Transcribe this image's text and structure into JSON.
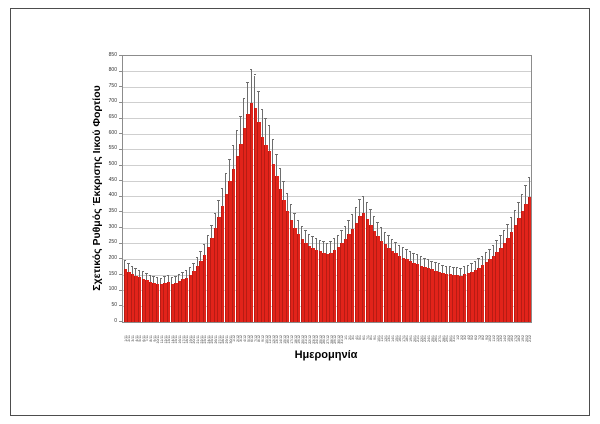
{
  "chart_data": {
    "type": "bar",
    "title": "",
    "xlabel": "Ημερομηνία",
    "ylabel": "Σχετικός Ρυθμός Έκκρισης Ιικού Φορτίου",
    "ylim": [
      0,
      850
    ],
    "ytick_step": 50,
    "grid": true,
    "legend_position": "none",
    "bar_color": "#e2231a",
    "error_color": "#6e6e6e",
    "error_bar_fraction": 0.15,
    "categories": [
      "1/11",
      "2/11",
      "3/11",
      "4/11",
      "5/11",
      "6/11",
      "7/11",
      "8/11",
      "9/11",
      "10/11",
      "11/11",
      "12/11",
      "13/11",
      "14/11",
      "15/11",
      "16/11",
      "17/11",
      "18/11",
      "19/11",
      "20/11",
      "21/11",
      "22/11",
      "23/11",
      "24/11",
      "25/11",
      "26/11",
      "27/11",
      "28/11",
      "29/11",
      "30/11",
      "1/12",
      "2/12",
      "3/12",
      "4/12",
      "5/12",
      "6/12",
      "7/12",
      "8/12",
      "9/12",
      "10/12",
      "11/12",
      "12/12",
      "13/12",
      "14/12",
      "15/12",
      "16/12",
      "17/12",
      "18/12",
      "19/12",
      "20/12",
      "21/12",
      "22/12",
      "23/12",
      "24/12",
      "25/12",
      "26/12",
      "27/12",
      "28/12",
      "29/12",
      "30/12",
      "31/12",
      "1/1",
      "2/1",
      "3/1",
      "4/1",
      "5/1",
      "6/1",
      "7/1",
      "8/1",
      "9/1",
      "10/1",
      "11/1",
      "12/1",
      "13/1",
      "14/1",
      "15/1",
      "16/1",
      "17/1",
      "18/1",
      "19/1",
      "20/1",
      "21/1",
      "22/1",
      "23/1",
      "24/1",
      "25/1",
      "26/1",
      "27/1",
      "28/1",
      "29/1",
      "30/1",
      "31/1",
      "1/2",
      "2/2",
      "3/2",
      "4/2",
      "5/2",
      "6/2",
      "7/2",
      "8/2",
      "9/2",
      "10/2",
      "11/2",
      "12/2",
      "13/2",
      "14/2",
      "15/2",
      "16/2",
      "17/2",
      "18/2",
      "19/2",
      "20/2",
      "21/2"
    ],
    "values": [
      170,
      160,
      152,
      148,
      143,
      138,
      133,
      128,
      125,
      122,
      120,
      124,
      128,
      122,
      126,
      131,
      136,
      142,
      150,
      162,
      178,
      195,
      215,
      240,
      268,
      300,
      335,
      370,
      410,
      450,
      490,
      530,
      570,
      620,
      665,
      700,
      685,
      640,
      590,
      565,
      545,
      505,
      465,
      425,
      390,
      355,
      325,
      300,
      280,
      265,
      252,
      243,
      237,
      230,
      226,
      222,
      218,
      222,
      230,
      240,
      252,
      265,
      280,
      298,
      318,
      338,
      348,
      330,
      310,
      292,
      275,
      260,
      248,
      238,
      228,
      220,
      212,
      206,
      200,
      195,
      190,
      185,
      180,
      176,
      172,
      168,
      164,
      160,
      157,
      154,
      152,
      150,
      149,
      148,
      152,
      156,
      161,
      167,
      174,
      182,
      191,
      201,
      212,
      224,
      238,
      253,
      270,
      289,
      309,
      331,
      354,
      378,
      400
    ]
  }
}
